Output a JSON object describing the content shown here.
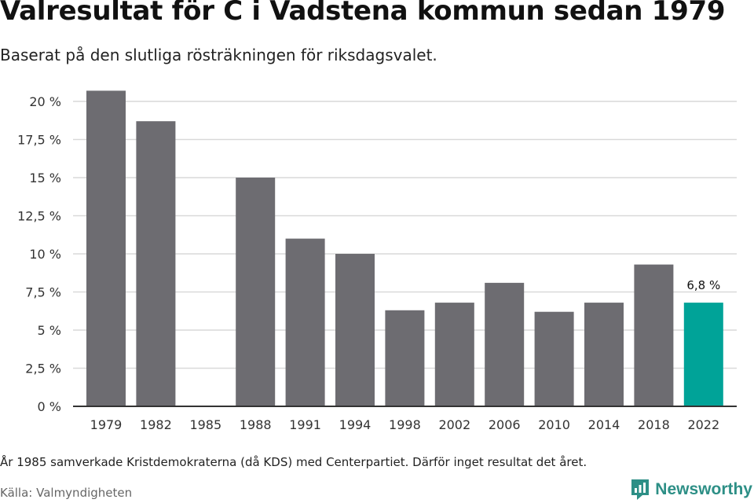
{
  "title": "Valresultat för C i Vadstena kommun sedan 1979",
  "subtitle": "Baserat på den slutliga rösträkningen för riksdagsvalet.",
  "note": "År 1985 samverkade Kristdemokraterna (då KDS) med Centerpartiet. Därför inget resultat det året.",
  "source": "Källa: Valmyndigheten",
  "brand": {
    "name": "Newsworthy",
    "icon": "newsworthy-logo-icon"
  },
  "colors": {
    "bar": "#6d6c71",
    "highlight": "#00a398",
    "grid": "#d9d9d9",
    "axis": "#333333"
  },
  "chart_data": {
    "type": "bar",
    "categories": [
      "1979",
      "1982",
      "1985",
      "1988",
      "1991",
      "1994",
      "1998",
      "2002",
      "2006",
      "2010",
      "2014",
      "2018",
      "2022"
    ],
    "values": [
      20.7,
      18.7,
      null,
      15.0,
      11.0,
      10.0,
      6.3,
      6.8,
      8.1,
      6.2,
      6.8,
      9.3,
      6.8
    ],
    "ylim": [
      0,
      20
    ],
    "yticks": [
      0,
      2.5,
      5,
      7.5,
      10,
      12.5,
      15,
      17.5,
      20
    ],
    "ytick_labels": [
      "0 %",
      "2,5 %",
      "5 %",
      "7,5 %",
      "10 %",
      "12,5 %",
      "15 %",
      "17,5 %",
      "20 %"
    ],
    "highlight_index": 12,
    "data_labels": [
      {
        "index": 12,
        "text": "6,8 %"
      }
    ],
    "grid": true,
    "xlabel": "",
    "ylabel": ""
  }
}
